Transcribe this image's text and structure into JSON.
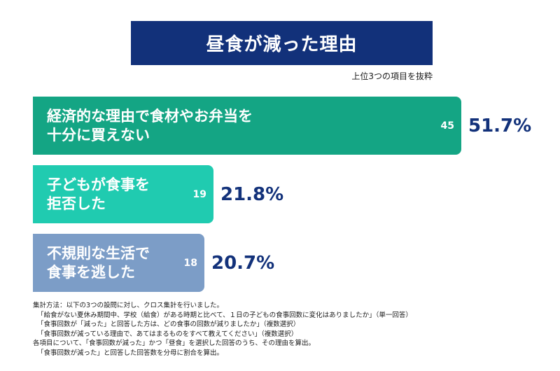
{
  "title": "昼食が減った理由",
  "subtitle": "上位3つの項目を抜粋",
  "chart_data": {
    "type": "bar",
    "orientation": "horizontal",
    "title": "昼食が減った理由",
    "subtitle": "上位3つの項目を抜粋",
    "categories": [
      "経済的な理由で食材やお弁当を\n十分に買えない",
      "子どもが食事を\n拒否した",
      "不規則な生活で\n食事を逃した"
    ],
    "counts": [
      "45",
      "19",
      "18"
    ],
    "values": [
      51.7,
      21.8,
      20.7
    ],
    "value_labels": [
      "51.7%",
      "21.8%",
      "20.7%"
    ],
    "colors": [
      "#14a584",
      "#20cbb0",
      "#7c9dc7"
    ],
    "xlim": [
      0,
      85
    ],
    "grid": false,
    "legend": "none"
  },
  "notes": [
    "集計方法：以下の3つの設問に対し、クロス集計を行いました。",
    "「給食がない夏休み期間中、学校（給食）がある時期と比べて、１日の子どもの食事回数に変化はありましたか」（単一回答）",
    "「食事回数が「減った」と回答した方は、どの食事の回数が減りましたか」（複数選択）",
    "「食事回数が減っている理由で、あてはまるものをすべて教えてください」（複数選択）",
    "各項目について、「食事回数が減った」かつ「昼食」を選択した回答のうち、その理由を算出。",
    "「食事回数が減った」と回答した回答数を分母に割合を算出。"
  ]
}
